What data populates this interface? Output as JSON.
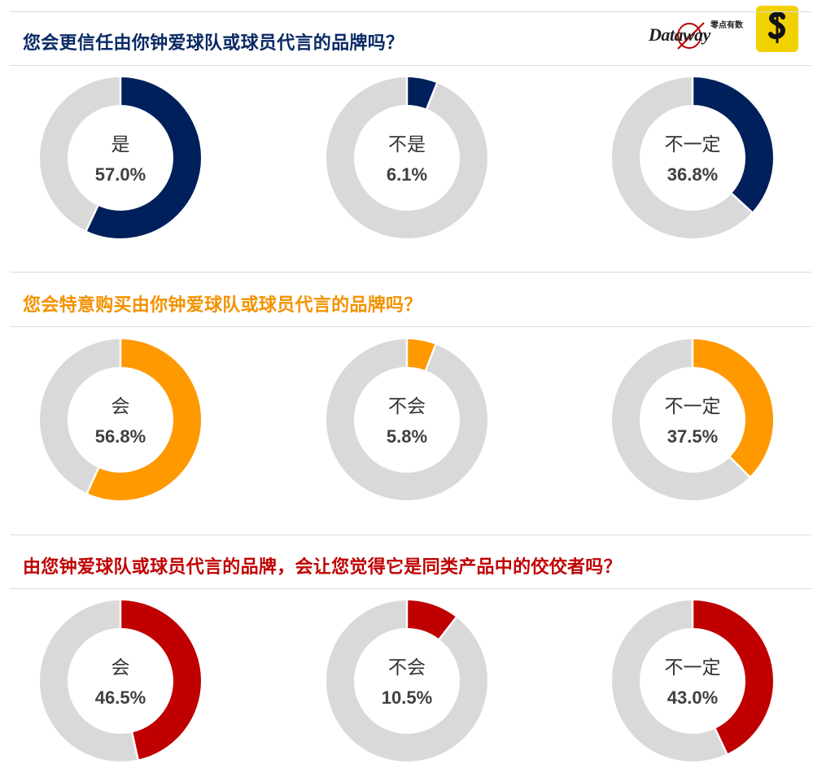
{
  "logos": {
    "dataway_text": "Dataway",
    "dataway_sub": "零点有数",
    "dataway_color": "#c00000",
    "s_logo_bg": "#f2d100"
  },
  "colors": {
    "track": "#d9d9d9",
    "navy": "#00205b",
    "orange": "#ff9900",
    "red": "#c00000"
  },
  "chart_data": [
    {
      "type": "pie",
      "title": "您会更信任由你钟爱球队或球员代言的品牌吗？",
      "title_color": "#0a2a66",
      "accent": "#00205b",
      "slices": [
        {
          "label": "是",
          "value": 57.0,
          "display": "57.0%"
        },
        {
          "label": "不是",
          "value": 6.1,
          "display": "6.1%"
        },
        {
          "label": "不一定",
          "value": 36.8,
          "display": "36.8%"
        }
      ]
    },
    {
      "type": "pie",
      "title": "您会特意购买由你钟爱球队或球员代言的品牌吗？",
      "title_color": "#f39200",
      "accent": "#ff9900",
      "slices": [
        {
          "label": "会",
          "value": 56.8,
          "display": "56.8%"
        },
        {
          "label": "不会",
          "value": 5.8,
          "display": "5.8%"
        },
        {
          "label": "不一定",
          "value": 37.5,
          "display": "37.5%"
        }
      ]
    },
    {
      "type": "pie",
      "title": "由您钟爱球队或球员代言的品牌，会让您觉得它是同类产品中的佼佼者吗？",
      "title_color": "#c00000",
      "accent": "#c00000",
      "slices": [
        {
          "label": "会",
          "value": 46.5,
          "display": "46.5%"
        },
        {
          "label": "不会",
          "value": 10.5,
          "display": "10.5%"
        },
        {
          "label": "不一定",
          "value": 43.0,
          "display": "43.0%"
        }
      ]
    }
  ]
}
